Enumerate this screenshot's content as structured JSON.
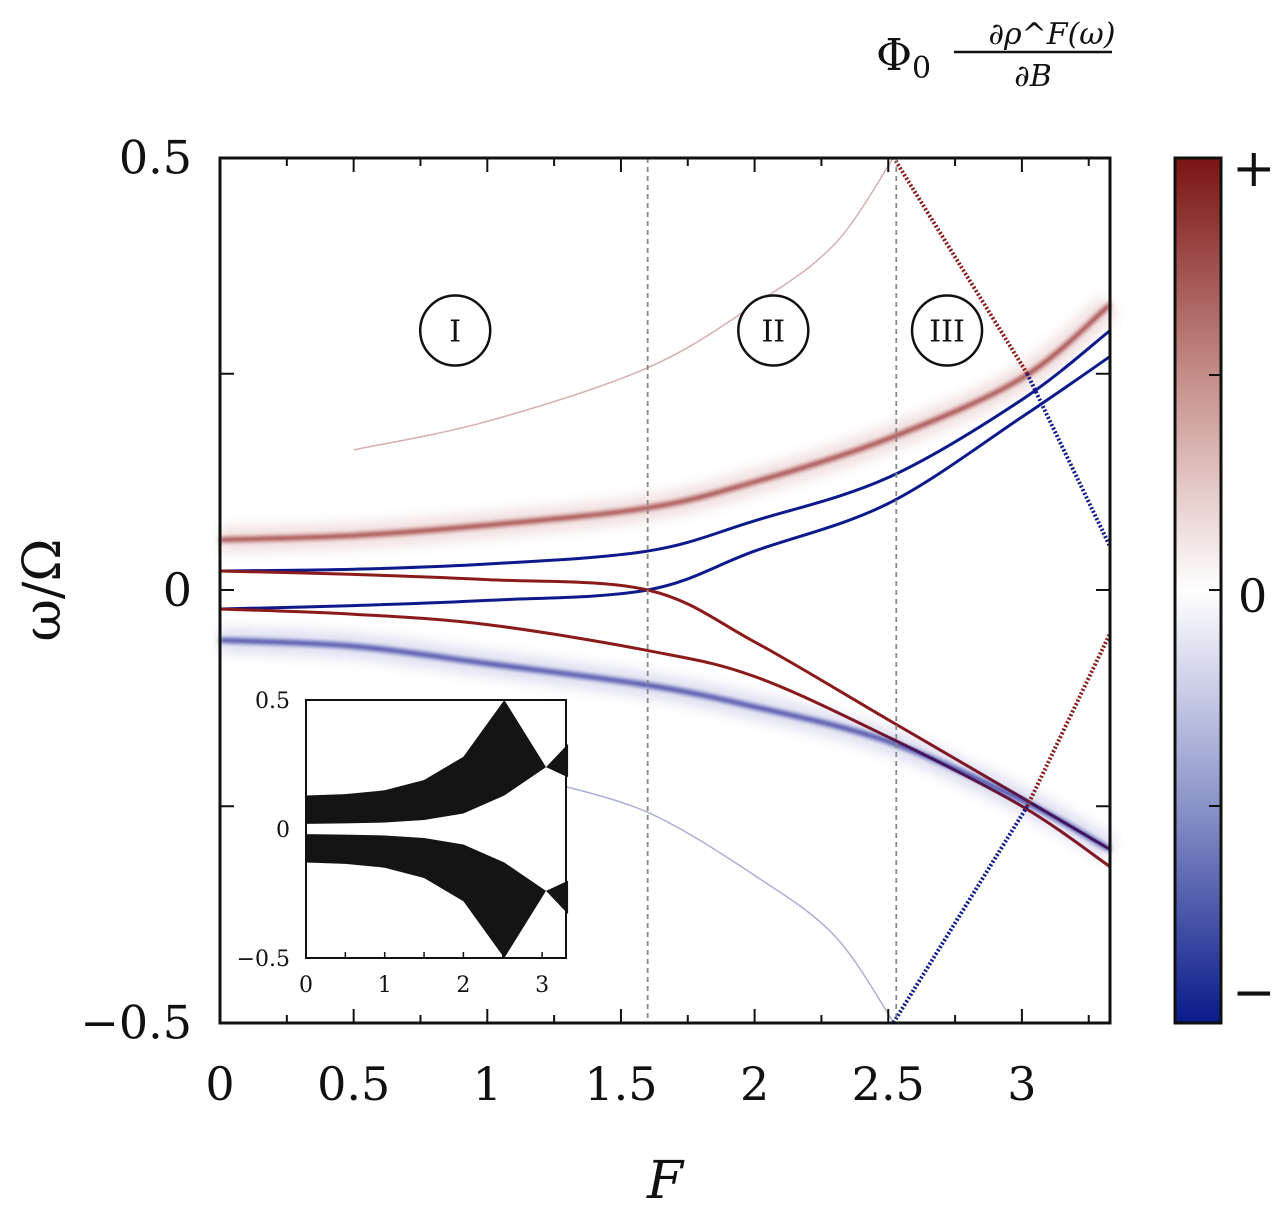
{
  "chart_data": [
    {
      "type": "heatmap",
      "title": "",
      "xlabel": "F",
      "ylabel": "ω/Ω",
      "xlim": [
        0,
        3.33
      ],
      "ylim": [
        -0.5,
        0.5
      ],
      "xticks": [
        "0",
        "0.5",
        "1",
        "1.5",
        "2",
        "2.5",
        "3"
      ],
      "yticks": [
        "−0.5",
        "0",
        "0.5"
      ],
      "colorbar": {
        "title": "Φ0 ∂ρ^F(ω)/∂B",
        "title_main": "Φ",
        "title_sub": "0",
        "title_num": "∂ρ^F(ω)",
        "title_den": "∂B",
        "labels": [
          "+",
          "0",
          "−"
        ],
        "colors": {
          "positive": "#8b1a1a",
          "zero": "#ffffff",
          "negative": "#0d1a8c"
        }
      },
      "vertical_lines": [
        1.6,
        2.53
      ],
      "regions": [
        {
          "label": "I",
          "F": 0.88,
          "omega": 0.3
        },
        {
          "label": "II",
          "F": 2.07,
          "omega": 0.3
        },
        {
          "label": "III",
          "F": 2.72,
          "omega": 0.3
        }
      ],
      "grid": false,
      "series": [
        {
          "sign": "+",
          "style": "faint",
          "x": [
            0.5,
            1.0,
            1.6,
            2.0,
            2.3,
            2.52
          ],
          "y": [
            0.162,
            0.195,
            0.257,
            0.33,
            0.4,
            0.5
          ]
        },
        {
          "sign": "-",
          "style": "faint",
          "x": [
            1.2,
            1.6,
            2.0,
            2.3,
            2.52
          ],
          "y": [
            -0.22,
            -0.257,
            -0.33,
            -0.4,
            -0.5
          ]
        },
        {
          "sign": "+",
          "style": "band",
          "x": [
            0,
            0.5,
            1.0,
            1.6,
            2.0,
            2.5,
            3.0,
            3.33
          ],
          "y": [
            0.058,
            0.063,
            0.075,
            0.095,
            0.125,
            0.175,
            0.245,
            0.33
          ]
        },
        {
          "sign": "-",
          "style": "line",
          "x": [
            0,
            0.5,
            1.0,
            1.6,
            2.0,
            2.5,
            3.0,
            3.33
          ],
          "y": [
            0.022,
            0.024,
            0.03,
            0.045,
            0.08,
            0.13,
            0.22,
            0.3
          ]
        },
        {
          "sign": "-",
          "style": "line",
          "x": [
            0,
            0.5,
            1.0,
            1.6,
            2.0,
            2.5,
            3.0,
            3.33
          ],
          "y": [
            -0.022,
            -0.018,
            -0.012,
            0,
            0.045,
            0.1,
            0.2,
            0.27
          ]
        },
        {
          "sign": "+",
          "style": "line",
          "x": [
            0,
            0.5,
            1.0,
            1.6,
            2.0,
            2.5,
            3.0,
            3.33
          ],
          "y": [
            0.022,
            0.018,
            0.012,
            0,
            -0.06,
            -0.15,
            -0.24,
            -0.3
          ]
        },
        {
          "sign": "+",
          "style": "line",
          "x": [
            0,
            0.5,
            1.0,
            1.6,
            2.0,
            2.5,
            3.0,
            3.33
          ],
          "y": [
            -0.022,
            -0.028,
            -0.04,
            -0.07,
            -0.1,
            -0.17,
            -0.25,
            -0.32
          ]
        },
        {
          "sign": "-",
          "style": "band",
          "x": [
            0,
            0.5,
            1.0,
            1.6,
            2.0,
            2.5,
            3.0,
            3.33
          ],
          "y": [
            -0.058,
            -0.065,
            -0.085,
            -0.11,
            -0.135,
            -0.175,
            -0.243,
            -0.3
          ]
        },
        {
          "sign": "+",
          "style": "dotted",
          "x": [
            2.52,
            3.02
          ],
          "y": [
            0.5,
            0.25
          ]
        },
        {
          "sign": "-",
          "style": "dotted",
          "x": [
            3.02,
            3.33
          ],
          "y": [
            0.25,
            0.05
          ]
        },
        {
          "sign": "-",
          "style": "dotted",
          "x": [
            2.52,
            3.02
          ],
          "y": [
            -0.5,
            -0.25
          ]
        },
        {
          "sign": "+",
          "style": "dotted",
          "x": [
            3.02,
            3.33
          ],
          "y": [
            -0.25,
            -0.05
          ]
        }
      ]
    },
    {
      "type": "area",
      "title": "",
      "xlim": [
        0,
        3.33
      ],
      "ylim": [
        -0.5,
        0.5
      ],
      "xticks": [
        "0",
        "1",
        "2",
        "3"
      ],
      "yticks": [
        "−0.5",
        "0",
        "0.5"
      ],
      "bands": [
        {
          "x": [
            0,
            0.5,
            1.0,
            1.5,
            2.0,
            2.52,
            3.05,
            3.33
          ],
          "upper": [
            0.13,
            0.135,
            0.15,
            0.19,
            0.28,
            0.5,
            0.24,
            0.33
          ],
          "lower": [
            0.02,
            0.022,
            0.025,
            0.035,
            0.06,
            0.13,
            0.24,
            0.2
          ]
        },
        {
          "x": [
            0,
            0.5,
            1.0,
            1.5,
            2.0,
            2.52,
            3.05,
            3.33
          ],
          "upper": [
            -0.02,
            -0.022,
            -0.025,
            -0.035,
            -0.06,
            -0.13,
            -0.24,
            -0.2
          ],
          "lower": [
            -0.13,
            -0.135,
            -0.15,
            -0.19,
            -0.28,
            -0.5,
            -0.24,
            -0.33
          ]
        }
      ]
    }
  ]
}
